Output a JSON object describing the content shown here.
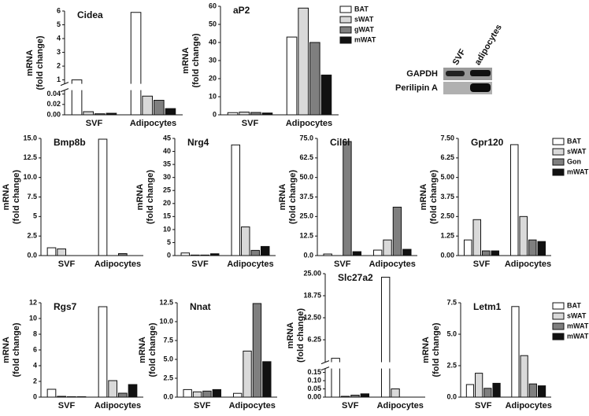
{
  "chart_data": [
    {
      "type": "bar",
      "title": "Cidea",
      "y_label": [
        "mRNA",
        "(fold change)"
      ],
      "categories": [
        "SVF",
        "Adipocytes"
      ],
      "ylim": [
        0,
        6
      ],
      "ybreak": [
        0.04,
        1
      ],
      "yticks": [
        {
          "value": 0,
          "label": "0.00"
        },
        {
          "value": 0.02,
          "label": "0.02"
        },
        {
          "value": 0.04,
          "label": "0.04"
        },
        1,
        2,
        3,
        4,
        5,
        6
      ],
      "series": [
        {
          "color": "#ffffff",
          "values": [
            1,
            5.9
          ]
        },
        {
          "color": "#d9d9d9",
          "values": [
            0.006,
            0.036
          ]
        },
        {
          "color": "#7f7f7f",
          "values": [
            0.002,
            0.028
          ]
        },
        {
          "color": "#111111",
          "values": [
            0.003,
            0.012
          ]
        }
      ]
    },
    {
      "type": "bar",
      "title": "aP2",
      "y_label": [
        "mRNA",
        "(fold change)"
      ],
      "categories": [
        "SVF",
        "Adipocytes"
      ],
      "ylim": [
        0,
        60
      ],
      "yticks": [
        0,
        10,
        20,
        30,
        40,
        50,
        60
      ],
      "legend": "right",
      "series": [
        {
          "name": "BAT",
          "color": "#ffffff",
          "values": [
            1.2,
            43
          ]
        },
        {
          "name": "sWAT",
          "color": "#d9d9d9",
          "values": [
            1.5,
            59
          ]
        },
        {
          "name": "gWAT",
          "color": "#7f7f7f",
          "values": [
            1.3,
            40
          ]
        },
        {
          "name": "mWAT",
          "color": "#111111",
          "values": [
            1.0,
            22
          ]
        }
      ]
    },
    {
      "type": "bar",
      "title": "Bmp8b",
      "y_label": [
        "mRNA",
        "(fold change)"
      ],
      "categories": [
        "SVF",
        "Adipocytes"
      ],
      "ylim": [
        0,
        15
      ],
      "yticks": [
        {
          "value": 0,
          "label": "0.0"
        },
        2.5,
        5,
        {
          "value": 7.5,
          "label": "7.5"
        },
        {
          "value": 10,
          "label": "10.0"
        },
        12.5,
        {
          "value": 15,
          "label": "15.0"
        }
      ],
      "series": [
        {
          "color": "#ffffff",
          "values": [
            1.0,
            14.9
          ]
        },
        {
          "color": "#d9d9d9",
          "values": [
            0.85,
            0
          ]
        },
        {
          "color": "#7f7f7f",
          "values": [
            0,
            0.25
          ]
        },
        {
          "color": "#111111",
          "values": [
            0,
            0
          ]
        }
      ]
    },
    {
      "type": "bar",
      "title": "Nrg4",
      "y_label": [
        "mRNA",
        "(fold change)"
      ],
      "categories": [
        "SVF",
        "Adipocytes"
      ],
      "ylim": [
        0,
        45
      ],
      "yticks": [
        0,
        5,
        10,
        15,
        20,
        25,
        30,
        35,
        40,
        45
      ],
      "series": [
        {
          "color": "#ffffff",
          "values": [
            1.0,
            42.5
          ]
        },
        {
          "color": "#d9d9d9",
          "values": [
            0.2,
            11
          ]
        },
        {
          "color": "#7f7f7f",
          "values": [
            0.2,
            2
          ]
        },
        {
          "color": "#111111",
          "values": [
            0.7,
            3.5
          ]
        }
      ]
    },
    {
      "type": "bar",
      "title": "Cil6l",
      "y_label": [
        "mRNA",
        "(fold change)"
      ],
      "categories": [
        "SVF",
        "Adipocytes"
      ],
      "ylim": [
        0,
        75
      ],
      "yticks": [
        {
          "value": 0,
          "label": "0.0"
        },
        12.5,
        {
          "value": 25,
          "label": "25.0"
        },
        37.5,
        {
          "value": 50,
          "label": "50.0"
        },
        62.5,
        {
          "value": 75,
          "label": "75.0"
        }
      ],
      "series": [
        {
          "color": "#ffffff",
          "values": [
            1.0,
            3.5
          ]
        },
        {
          "color": "#d9d9d9",
          "values": [
            0,
            10
          ]
        },
        {
          "color": "#7f7f7f",
          "values": [
            73,
            31
          ]
        },
        {
          "color": "#111111",
          "values": [
            2.5,
            4
          ]
        }
      ]
    },
    {
      "type": "bar",
      "title": "Gpr120",
      "y_label": [
        "mRNA",
        "(fold change)"
      ],
      "categories": [
        "SVF",
        "Adipocytes"
      ],
      "ylim": [
        0,
        7.5
      ],
      "yticks": [
        {
          "value": 0,
          "label": "0.00"
        },
        1.25,
        {
          "value": 2.5,
          "label": "2.50"
        },
        3.75,
        {
          "value": 5,
          "label": "5.00"
        },
        6.25,
        {
          "value": 7.5,
          "label": "7.50"
        }
      ],
      "legend": "right",
      "series": [
        {
          "name": "BAT",
          "color": "#ffffff",
          "values": [
            1.0,
            7.1
          ]
        },
        {
          "name": "sWAT",
          "color": "#d9d9d9",
          "values": [
            2.3,
            2.5
          ]
        },
        {
          "name": "Gon",
          "color": "#7f7f7f",
          "values": [
            0.3,
            1.0
          ]
        },
        {
          "name": "mWAT",
          "color": "#111111",
          "values": [
            0.3,
            0.9
          ]
        }
      ]
    },
    {
      "type": "bar",
      "title": "Rgs7",
      "y_label": [
        "mRNA",
        "(fold change)"
      ],
      "categories": [
        "SVF",
        "Adipocytes"
      ],
      "ylim": [
        0,
        12
      ],
      "yticks": [
        0,
        2,
        4,
        6,
        8,
        10,
        12
      ],
      "series": [
        {
          "color": "#ffffff",
          "values": [
            1.0,
            11.5
          ]
        },
        {
          "color": "#d9d9d9",
          "values": [
            0.1,
            2.1
          ]
        },
        {
          "color": "#7f7f7f",
          "values": [
            0.05,
            0.5
          ]
        },
        {
          "color": "#111111",
          "values": [
            0.05,
            1.6
          ]
        }
      ]
    },
    {
      "type": "bar",
      "title": "Nnat",
      "y_label": [
        "mRNA",
        "(fold change)"
      ],
      "categories": [
        "SVF",
        "Adipocytes"
      ],
      "ylim": [
        0,
        12.5
      ],
      "yticks": [
        {
          "value": 0,
          "label": "0.0"
        },
        2.5,
        {
          "value": 5,
          "label": "5.0"
        },
        7.5,
        {
          "value": 10,
          "label": "10.0"
        },
        12.5
      ],
      "series": [
        {
          "color": "#ffffff",
          "values": [
            1.0,
            0.5
          ]
        },
        {
          "color": "#d9d9d9",
          "values": [
            0.7,
            6.1
          ]
        },
        {
          "color": "#7f7f7f",
          "values": [
            0.8,
            12.4
          ]
        },
        {
          "color": "#111111",
          "values": [
            1.0,
            4.7
          ]
        }
      ]
    },
    {
      "type": "bar",
      "title": "Slc27a2",
      "y_label": [
        "mRNA",
        "(fold change)"
      ],
      "categories": [
        "SVF",
        "Adipocytes"
      ],
      "ylim": [
        0,
        25
      ],
      "ybreak": [
        0.15,
        1
      ],
      "yticks": [
        {
          "value": 0,
          "label": "0.00"
        },
        0.05,
        {
          "value": 0.1,
          "label": "0.10"
        },
        0.15,
        6.25,
        {
          "value": 12.5,
          "label": "12.50"
        },
        18.75,
        {
          "value": 25,
          "label": "25.00"
        }
      ],
      "series": [
        {
          "color": "#ffffff",
          "values": [
            1,
            24
          ]
        },
        {
          "color": "#d9d9d9",
          "values": [
            0.005,
            0.05
          ]
        },
        {
          "color": "#7f7f7f",
          "values": [
            0.012,
            0
          ]
        },
        {
          "color": "#111111",
          "values": [
            0.02,
            0
          ]
        }
      ]
    },
    {
      "type": "bar",
      "title": "Letm1",
      "y_label": [
        "mRNA",
        "(fold change)"
      ],
      "categories": [
        "SVF",
        "Adipocytes"
      ],
      "ylim": [
        0,
        7.5
      ],
      "yticks": [
        {
          "value": 0,
          "label": "0.0"
        },
        2.5,
        {
          "value": 5,
          "label": "5.0"
        },
        7.5
      ],
      "legend": "right",
      "series": [
        {
          "name": "BAT",
          "color": "#ffffff",
          "values": [
            1.0,
            7.2
          ]
        },
        {
          "name": "sWAT",
          "color": "#d9d9d9",
          "values": [
            1.9,
            3.3
          ]
        },
        {
          "name": "mWAT",
          "color": "#7f7f7f",
          "values": [
            0.7,
            1.05
          ]
        },
        {
          "name": "mWAT",
          "color": "#111111",
          "values": [
            1.1,
            0.9
          ]
        }
      ]
    }
  ],
  "blot": {
    "columns": [
      "SVF",
      "adipocytes"
    ],
    "rows": [
      "GAPDH",
      "Perilipin A"
    ]
  }
}
